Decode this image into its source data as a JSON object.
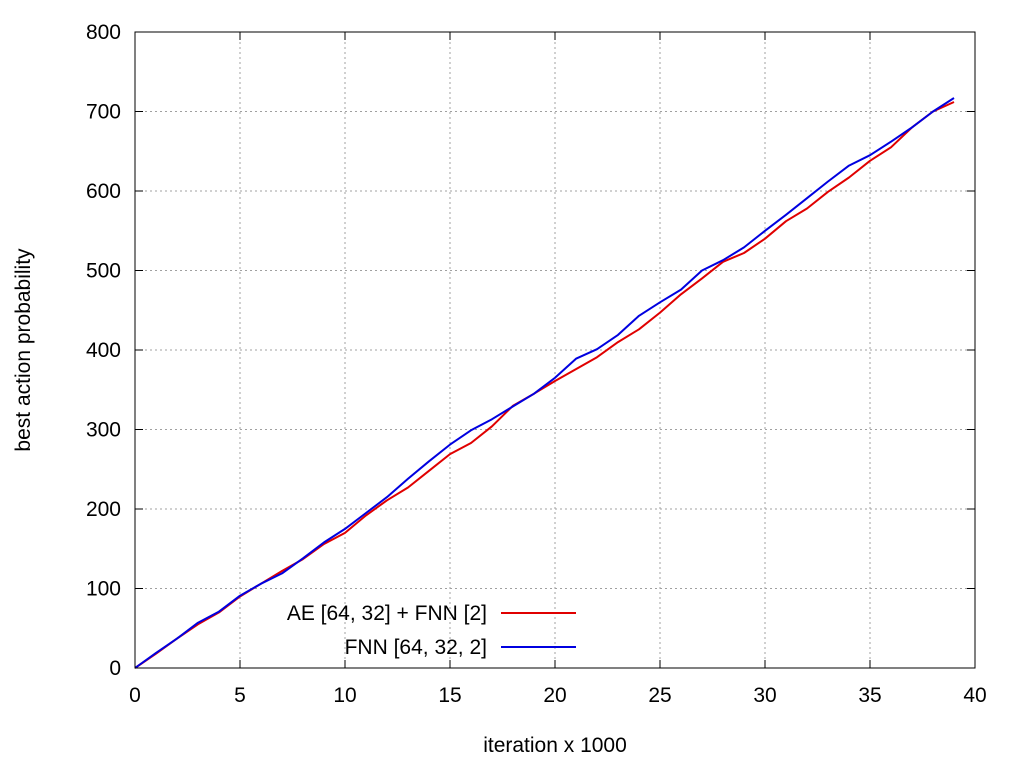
{
  "chart_data": {
    "type": "line",
    "title": "",
    "xlabel": "iteration x 1000",
    "ylabel": "best action probability",
    "xlim": [
      0,
      40
    ],
    "ylim": [
      0,
      800
    ],
    "xticks": [
      0,
      5,
      10,
      15,
      20,
      25,
      30,
      35,
      40
    ],
    "yticks": [
      0,
      100,
      200,
      300,
      400,
      500,
      600,
      700,
      800
    ],
    "grid": true,
    "legend_position": "bottom-left",
    "series": [
      {
        "name": "AE [64, 32] + FNN [2]",
        "color": "#e00000",
        "x": [
          0,
          1,
          2,
          3,
          4,
          5,
          6,
          7,
          8,
          9,
          10,
          11,
          12,
          13,
          14,
          15,
          16,
          17,
          18,
          19,
          20,
          21,
          22,
          23,
          24,
          25,
          26,
          27,
          28,
          29,
          30,
          31,
          32,
          33,
          34,
          35,
          36,
          37,
          38,
          39
        ],
        "y": [
          0,
          18,
          37,
          55,
          70,
          90,
          106,
          122,
          137,
          156,
          170,
          192,
          211,
          227,
          248,
          269,
          283,
          304,
          330,
          345,
          361,
          376,
          391,
          410,
          426,
          447,
          470,
          490,
          511,
          522,
          540,
          562,
          578,
          599,
          617,
          638,
          655,
          680,
          700,
          712
        ]
      },
      {
        "name": "FNN [64, 32, 2]",
        "color": "#0000e0",
        "x": [
          0,
          1,
          2,
          3,
          4,
          5,
          6,
          7,
          8,
          9,
          10,
          11,
          12,
          13,
          14,
          15,
          16,
          17,
          18,
          19,
          20,
          21,
          22,
          23,
          24,
          25,
          26,
          27,
          28,
          29,
          30,
          31,
          32,
          33,
          34,
          35,
          36,
          37,
          38,
          39
        ],
        "y": [
          0,
          19,
          37,
          57,
          71,
          91,
          106,
          119,
          138,
          158,
          175,
          195,
          215,
          238,
          260,
          281,
          299,
          313,
          329,
          345,
          365,
          389,
          401,
          419,
          443,
          460,
          476,
          500,
          513,
          529,
          550,
          570,
          591,
          612,
          632,
          645,
          662,
          680,
          700,
          717
        ]
      }
    ]
  }
}
